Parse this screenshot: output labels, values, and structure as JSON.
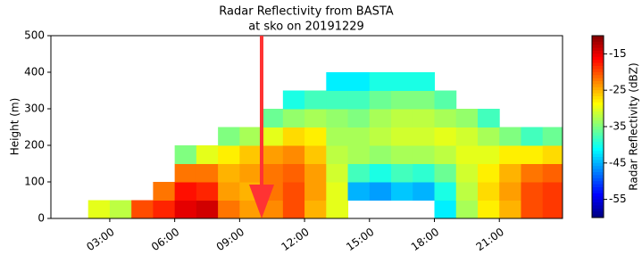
{
  "chart_data": {
    "type": "heatmap",
    "title": "Radar Reflectivity from BASTA",
    "subtitle": "at sko on 20191229",
    "y_label": "Height (m)",
    "colorbar_label": "Radar Reflectivity (dBZ)",
    "colormap": "jet",
    "x": [
      0.5,
      1.5,
      2.5,
      3.5,
      4.5,
      5.5,
      6.5,
      7.5,
      8.5,
      9.5,
      10.5,
      11.5,
      12.5,
      13.5,
      14.5,
      15.5,
      16.5,
      17.5,
      18.5,
      19.5,
      20.5,
      21.5,
      22.5,
      23.5
    ],
    "y": [
      25,
      75,
      125,
      175,
      225,
      275,
      325,
      375
    ],
    "z": [
      [
        null,
        null,
        null,
        null,
        null,
        null,
        null,
        null
      ],
      [
        null,
        null,
        null,
        null,
        null,
        null,
        null,
        null
      ],
      [
        -30,
        null,
        null,
        null,
        null,
        null,
        null,
        null
      ],
      [
        -32,
        null,
        null,
        null,
        null,
        null,
        null,
        null
      ],
      [
        -20,
        null,
        null,
        null,
        null,
        null,
        null,
        null
      ],
      [
        -18,
        -22,
        null,
        null,
        null,
        null,
        null,
        null
      ],
      [
        -15,
        -17,
        -22,
        -35,
        null,
        null,
        null,
        null
      ],
      [
        -14,
        -18,
        -22,
        -30,
        null,
        null,
        null,
        null
      ],
      [
        -22,
        -24,
        -25,
        -28,
        -35,
        null,
        null,
        null
      ],
      [
        -24,
        -25,
        -24,
        -26,
        -33,
        null,
        null,
        null
      ],
      [
        -23,
        -22,
        -22,
        -24,
        -30,
        -36,
        null,
        null
      ],
      [
        -20,
        -20,
        -21,
        -23,
        -27,
        -34,
        -40,
        null
      ],
      [
        -25,
        -24,
        -24,
        -26,
        -28,
        -33,
        -38,
        null
      ],
      [
        -30,
        -30,
        -31,
        -32,
        -33,
        -34,
        -38,
        -42
      ],
      [
        null,
        -45,
        -38,
        -33,
        -33,
        -35,
        -38,
        -42
      ],
      [
        null,
        -46,
        -40,
        -34,
        -32,
        -33,
        -36,
        -40
      ],
      [
        null,
        -44,
        -38,
        -33,
        -31,
        -32,
        -35,
        -40
      ],
      [
        null,
        -45,
        -39,
        -33,
        -31,
        -32,
        -35,
        -40
      ],
      [
        -42,
        -40,
        -36,
        -32,
        -30,
        -33,
        -37,
        null
      ],
      [
        -33,
        -32,
        -31,
        -30,
        -31,
        -34,
        null,
        null
      ],
      [
        -28,
        -27,
        -28,
        -30,
        -33,
        -38,
        null,
        null
      ],
      [
        -25,
        -24,
        -25,
        -28,
        -35,
        null,
        null,
        null
      ],
      [
        -20,
        -20,
        -22,
        -28,
        -38,
        null,
        null,
        null
      ],
      [
        -19,
        -19,
        -21,
        -27,
        -36,
        null,
        null,
        null
      ]
    ],
    "xlim": [
      0.28,
      23.92
    ],
    "ylim": [
      0,
      500
    ],
    "xticks": [
      {
        "value": 3,
        "label": "03:00"
      },
      {
        "value": 6,
        "label": "06:00"
      },
      {
        "value": 9,
        "label": "09:00"
      },
      {
        "value": 12,
        "label": "12:00"
      },
      {
        "value": 15,
        "label": "15:00"
      },
      {
        "value": 18,
        "label": "18:00"
      },
      {
        "value": 21,
        "label": "21:00"
      }
    ],
    "yticks": [
      0,
      100,
      200,
      300,
      400,
      500
    ],
    "clim": [
      -60,
      -10
    ],
    "cticks": [
      -15,
      -25,
      -35,
      -45,
      -55
    ]
  }
}
